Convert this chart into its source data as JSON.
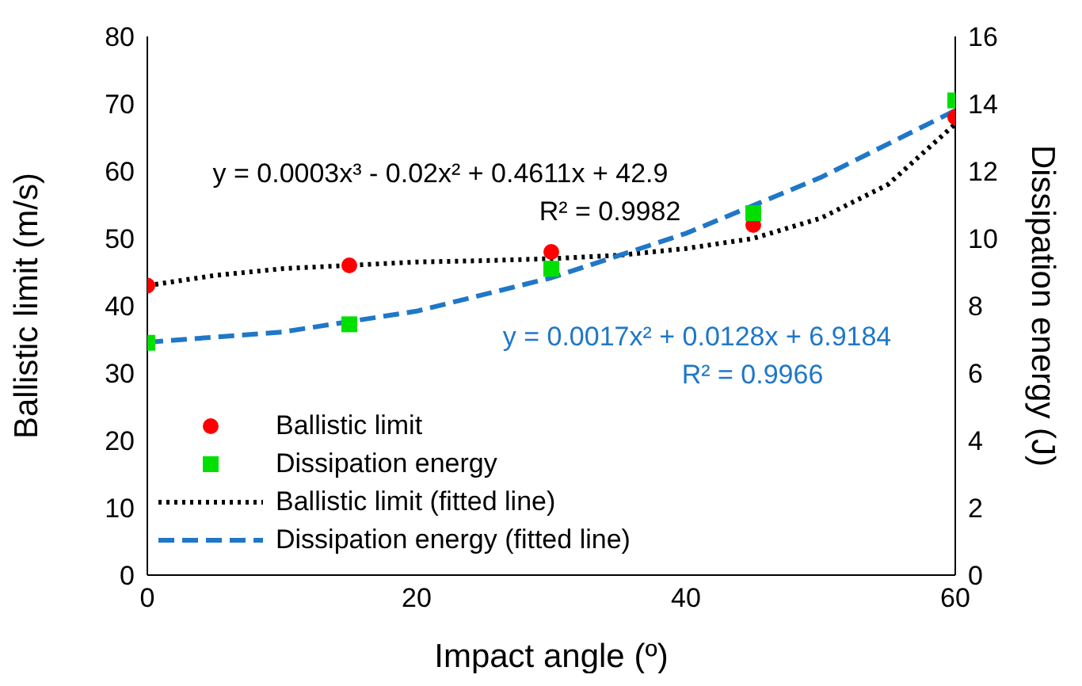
{
  "chart_data": {
    "type": "scatter",
    "xlabel": "Impact angle (º)",
    "ylabel": "Ballistic limit (m/s)",
    "y2label": "Dissipation energy (J)",
    "xlim": [
      0,
      60
    ],
    "xticks": [
      0,
      20,
      40,
      60
    ],
    "ylim": [
      0,
      80
    ],
    "yticks": [
      0,
      10,
      20,
      30,
      40,
      50,
      60,
      70,
      80
    ],
    "y2lim": [
      0,
      16
    ],
    "y2ticks": [
      0,
      2,
      4,
      6,
      8,
      10,
      12,
      14,
      16
    ],
    "grid": false,
    "legend": "bottom left",
    "series": [
      {
        "name": "Ballistic limit",
        "type": "scatter",
        "marker": "circle",
        "color": "#ff0000",
        "x": [
          0,
          15,
          30,
          45,
          60
        ],
        "values": [
          43,
          46,
          48,
          52,
          68
        ]
      },
      {
        "name": "Dissipation energy",
        "type": "scatter",
        "marker": "square",
        "color": "#00e000",
        "axis": "y2",
        "x": [
          0,
          15,
          30,
          45,
          60
        ],
        "values": [
          6.9,
          7.45,
          9.1,
          10.75,
          14.1
        ]
      },
      {
        "name": "Ballistic limit (fitted line)",
        "type": "line",
        "line_style": "dotted",
        "color": "#000000",
        "x": [
          0,
          5,
          10,
          15,
          20,
          25,
          30,
          35,
          40,
          45,
          50,
          55,
          60
        ],
        "values": [
          43,
          44.5,
          45.5,
          46,
          46.5,
          46.7,
          47,
          47.5,
          48.5,
          50,
          53,
          58,
          67
        ]
      },
      {
        "name": "Dissipation energy (fitted line)",
        "type": "line",
        "line_style": "dashed",
        "color": "#1f77c8",
        "axis": "y2",
        "x": [
          0,
          10,
          20,
          30,
          40,
          50,
          60
        ],
        "values": [
          6.92,
          7.22,
          7.84,
          8.83,
          10.15,
          11.81,
          13.8
        ]
      }
    ],
    "annotations": [
      "y = 0.0003x³ - 0.02x² + 0.4611x + 42.9",
      "R² = 0.9982",
      "y = 0.0017x² + 0.0128x + 6.9184",
      "R² = 0.9966"
    ]
  }
}
